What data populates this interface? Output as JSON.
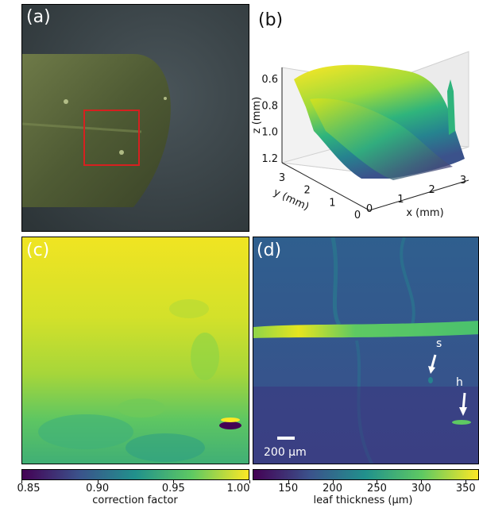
{
  "panels": {
    "a": {
      "label": "(a)"
    },
    "b": {
      "label": "(b)"
    },
    "c": {
      "label": "(c)"
    },
    "d": {
      "label": "(d)"
    }
  },
  "chart_data": [
    {
      "type": "image",
      "panel": "(a)",
      "title": "",
      "annotations": []
    },
    {
      "type": "surface3d",
      "panel": "(b)",
      "xlabel": "x (mm)",
      "ylabel": "y (mm)",
      "zlabel": "z (mm)",
      "xticks": [
        "0",
        "1",
        "2",
        "3"
      ],
      "yticks": [
        "0",
        "1",
        "2",
        "3"
      ],
      "zticks": [
        "0.6",
        "0.8",
        "1.0",
        "1.2"
      ],
      "zlim": [
        1.3,
        0.55
      ],
      "colormap": "viridis"
    },
    {
      "type": "heatmap",
      "panel": "(c)",
      "colormap": "viridis",
      "colorbar": {
        "label": "correction factor",
        "ticks": [
          "0.85",
          "0.90",
          "0.95",
          "1.00"
        ],
        "range": [
          0.85,
          1.0
        ]
      }
    },
    {
      "type": "heatmap",
      "panel": "(d)",
      "colormap": "viridis",
      "annotations": [
        {
          "text": "s"
        },
        {
          "text": "h"
        }
      ],
      "scalebar": {
        "text": "200 μm"
      },
      "colorbar": {
        "label": "leaf thickness (μm)",
        "ticks": [
          "150",
          "200",
          "250",
          "300",
          "350"
        ],
        "range": [
          110,
          365
        ]
      }
    }
  ],
  "colors": {
    "viridis_dark": "#440154",
    "viridis_mid": "#21918c",
    "viridis_light": "#fde725",
    "roi_box": "#d62020"
  }
}
